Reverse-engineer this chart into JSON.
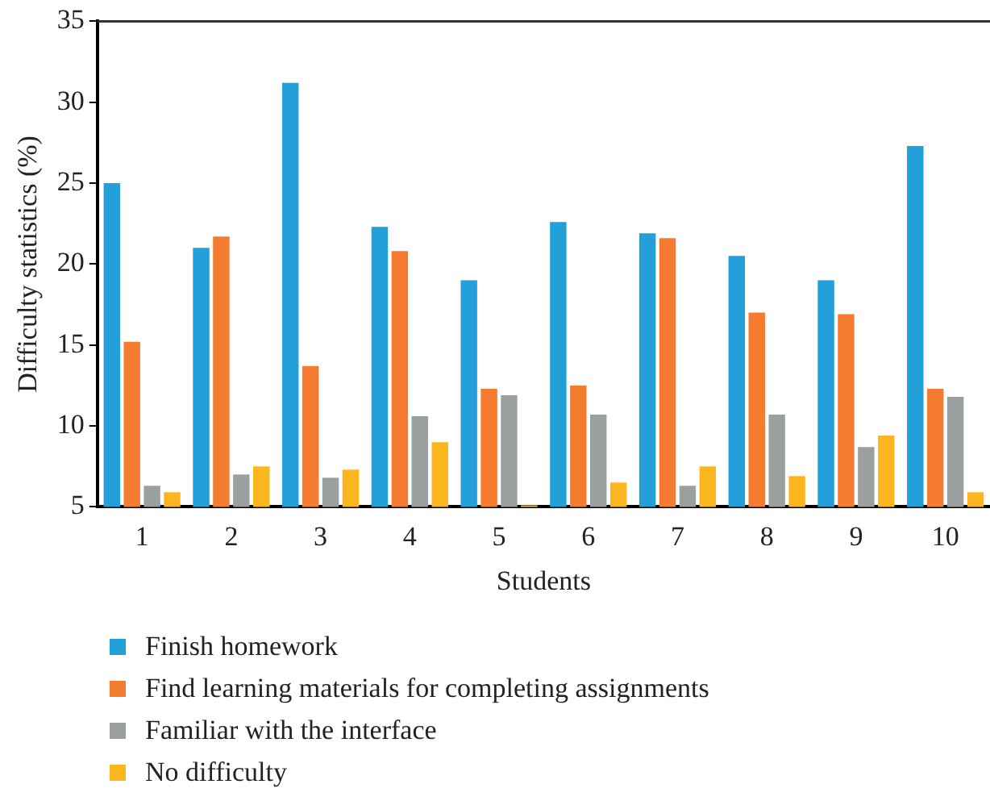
{
  "chart_data": {
    "type": "bar",
    "xlabel": "Students",
    "ylabel": "Difficulty statistics (%)",
    "categories": [
      "1",
      "2",
      "3",
      "4",
      "5",
      "6",
      "7",
      "8",
      "9",
      "10"
    ],
    "series": [
      {
        "name": "Finish homework",
        "color": "#239fda",
        "values": [
          25,
          21,
          31.2,
          22.3,
          19,
          22.6,
          21.9,
          20.5,
          19,
          27.3
        ]
      },
      {
        "name": "Find learning materials for completing assignments",
        "color": "#f47b2f",
        "values": [
          15.2,
          21.7,
          13.7,
          20.8,
          12.3,
          12.5,
          21.6,
          17,
          16.9,
          12.3
        ]
      },
      {
        "name": "Familiar with the interface",
        "color": "#9c9fa0",
        "values": [
          6.3,
          7,
          6.8,
          10.6,
          11.9,
          10.7,
          6.3,
          10.7,
          8.7,
          11.8
        ]
      },
      {
        "name": "No difficulty",
        "color": "#fbb61f",
        "values": [
          5.9,
          7.5,
          7.3,
          9,
          5.1,
          6.5,
          7.5,
          6.9,
          9.4,
          5.9
        ]
      }
    ],
    "ylim": [
      5,
      35
    ],
    "yticks": [
      5,
      10,
      15,
      20,
      25,
      30,
      35
    ],
    "grid": false,
    "legend": "bottom"
  }
}
